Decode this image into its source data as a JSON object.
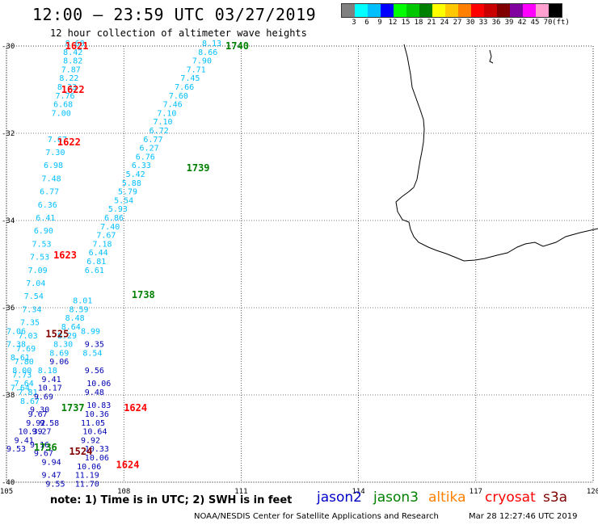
{
  "header": {
    "title": "12:00 – 23:59 UTC 03/27/2019",
    "subtitle": "12 hour collection of altimeter wave heights"
  },
  "colorbar": {
    "colors": [
      "#808080",
      "#00ffff",
      "#00bfff",
      "#0000ff",
      "#00ff00",
      "#00c800",
      "#008000",
      "#ffff00",
      "#ffc800",
      "#ff8000",
      "#ff0000",
      "#c80000",
      "#800000",
      "#8000a0",
      "#ff00ff",
      "#ffa0d0",
      "#000000"
    ],
    "labels": [
      "3",
      "6",
      "9",
      "12",
      "15",
      "18",
      "21",
      "24",
      "27",
      "30",
      "33",
      "36",
      "39",
      "42",
      "45",
      "70",
      "(ft)"
    ]
  },
  "axes": {
    "x_ticks": [
      "105",
      "108",
      "111",
      "114",
      "117",
      "120"
    ],
    "y_ticks": [
      "-30",
      "-32",
      "-34",
      "-36",
      "-38",
      "-40"
    ]
  },
  "satellite_colors": {
    "jason2": "#0000c8",
    "jason3": "#008000",
    "altika": "#ff8000",
    "cryosat": "#ff0000",
    "s3a": "#800000",
    "swh_light": "#00bfff"
  },
  "tracks": [
    {
      "id": "1621",
      "sat": "cryosat",
      "lon": 106.5,
      "lat": -30.0
    },
    {
      "id": "1622",
      "sat": "cryosat",
      "lon": 106.4,
      "lat": -31.0
    },
    {
      "id": "1622",
      "sat": "cryosat",
      "lon": 106.3,
      "lat": -32.2
    },
    {
      "id": "1623",
      "sat": "cryosat",
      "lon": 106.2,
      "lat": -34.8
    },
    {
      "id": "1624",
      "sat": "cryosat",
      "lon": 108.0,
      "lat": -38.3
    },
    {
      "id": "1624",
      "sat": "cryosat",
      "lon": 107.8,
      "lat": -39.6
    },
    {
      "id": "1740",
      "sat": "jason3",
      "lon": 110.6,
      "lat": -30.0
    },
    {
      "id": "1739",
      "sat": "jason3",
      "lon": 109.6,
      "lat": -32.8
    },
    {
      "id": "1738",
      "sat": "jason3",
      "lon": 108.2,
      "lat": -35.7
    },
    {
      "id": "1737",
      "sat": "jason3",
      "lon": 106.4,
      "lat": -38.3
    },
    {
      "id": "1736",
      "sat": "jason3",
      "lon": 105.7,
      "lat": -39.2
    },
    {
      "id": "1525",
      "sat": "s3a",
      "lon": 106.0,
      "lat": -36.6
    },
    {
      "id": "1524",
      "sat": "s3a",
      "lon": 106.6,
      "lat": -39.3
    }
  ],
  "wave_values": {
    "light": [
      [
        "8.68",
        106.5,
        -30.0
      ],
      [
        "8.42",
        106.45,
        -30.2
      ],
      [
        "8.82",
        106.45,
        -30.4
      ],
      [
        "7.87",
        106.4,
        -30.6
      ],
      [
        "8.22",
        106.35,
        -30.8
      ],
      [
        "8.33",
        106.3,
        -31.0
      ],
      [
        "7.76",
        106.25,
        -31.2
      ],
      [
        "6.68",
        106.2,
        -31.4
      ],
      [
        "7.00",
        106.15,
        -31.6
      ],
      [
        "8.13",
        110.0,
        -30.0
      ],
      [
        "8.66",
        109.9,
        -30.2
      ],
      [
        "7.90",
        109.75,
        -30.4
      ],
      [
        "7.71",
        109.6,
        -30.6
      ],
      [
        "7.45",
        109.45,
        -30.8
      ],
      [
        "7.66",
        109.3,
        -31.0
      ],
      [
        "7.60",
        109.15,
        -31.2
      ],
      [
        "7.46",
        109.0,
        -31.4
      ],
      [
        "7.10",
        108.85,
        -31.6
      ],
      [
        "7.10",
        108.75,
        -31.8
      ],
      [
        "6.72",
        108.65,
        -32.0
      ],
      [
        "6.77",
        108.5,
        -32.2
      ],
      [
        "6.27",
        108.4,
        -32.4
      ],
      [
        "6.76",
        108.3,
        -32.6
      ],
      [
        "6.33",
        108.2,
        -32.8
      ],
      [
        "5.42",
        108.05,
        -33.0
      ],
      [
        "5.88",
        107.95,
        -33.2
      ],
      [
        "5.79",
        107.85,
        -33.4
      ],
      [
        "5.54",
        107.75,
        -33.6
      ],
      [
        "5.93",
        107.6,
        -33.8
      ],
      [
        "6.86",
        107.5,
        -34.0
      ],
      [
        "7.40",
        107.4,
        -34.2
      ],
      [
        "7.67",
        107.3,
        -34.4
      ],
      [
        "7.18",
        107.2,
        -34.6
      ],
      [
        "6.44",
        107.1,
        -34.8
      ],
      [
        "6.81",
        107.05,
        -35.0
      ],
      [
        "6.61",
        107.0,
        -35.2
      ],
      [
        "7.67",
        106.05,
        -32.2
      ],
      [
        "7.30",
        106.0,
        -32.5
      ],
      [
        "6.98",
        105.95,
        -32.8
      ],
      [
        "7.48",
        105.9,
        -33.1
      ],
      [
        "6.77",
        105.85,
        -33.4
      ],
      [
        "6.36",
        105.8,
        -33.7
      ],
      [
        "6.41",
        105.75,
        -34.0
      ],
      [
        "6.90",
        105.7,
        -34.3
      ],
      [
        "7.53",
        105.65,
        -34.6
      ],
      [
        "7.53",
        105.6,
        -34.9
      ],
      [
        "7.09",
        105.55,
        -35.2
      ],
      [
        "7.04",
        105.5,
        -35.5
      ],
      [
        "7.54",
        105.45,
        -35.8
      ],
      [
        "7.34",
        105.4,
        -36.1
      ],
      [
        "7.35",
        105.35,
        -36.4
      ],
      [
        "7.03",
        105.3,
        -36.7
      ],
      [
        "7.69",
        105.25,
        -37.0
      ],
      [
        "7.80",
        105.2,
        -37.3
      ],
      [
        "7.73",
        105.15,
        -37.6
      ],
      [
        "7.64",
        105.1,
        -37.9
      ],
      [
        "8.01",
        106.7,
        -35.9
      ],
      [
        "8.59",
        106.6,
        -36.1
      ],
      [
        "8.48",
        106.5,
        -36.3
      ],
      [
        "8.64",
        106.4,
        -36.5
      ],
      [
        "8.29",
        106.3,
        -36.7
      ],
      [
        "8.99",
        106.9,
        -36.6
      ],
      [
        "8.30",
        106.2,
        -36.9
      ],
      [
        "8.69",
        106.1,
        -37.1
      ],
      [
        "8.54",
        106.95,
        -37.1
      ],
      [
        "8.18",
        105.8,
        -37.5
      ],
      [
        "7.06",
        105.0,
        -36.6
      ],
      [
        "7.38",
        105.0,
        -36.9
      ],
      [
        "8.61",
        105.1,
        -37.2
      ],
      [
        "8.00",
        105.15,
        -37.5
      ],
      [
        "7.64",
        105.2,
        -37.8
      ],
      [
        "7.81",
        105.3,
        -38.0
      ],
      [
        "8.67",
        105.35,
        -38.2
      ]
    ],
    "dark": [
      [
        "9.35",
        107.0,
        -36.9
      ],
      [
        "9.06",
        106.1,
        -37.3
      ],
      [
        "9.56",
        107.0,
        -37.5
      ],
      [
        "9.41",
        105.9,
        -37.7
      ],
      [
        "10.06",
        107.05,
        -37.8
      ],
      [
        "10.17",
        105.8,
        -37.9
      ],
      [
        "9.48",
        107.0,
        -38.0
      ],
      [
        "9.69",
        105.7,
        -38.1
      ],
      [
        "10.83",
        107.05,
        -38.3
      ],
      [
        "9.30",
        105.6,
        -38.4
      ],
      [
        "9.67",
        105.55,
        -38.5
      ],
      [
        "10.36",
        107.0,
        -38.5
      ],
      [
        "9.92",
        105.5,
        -38.7
      ],
      [
        "11.05",
        106.9,
        -38.7
      ],
      [
        "9.58",
        105.85,
        -38.7
      ],
      [
        "10.64",
        106.95,
        -38.9
      ],
      [
        "10.39",
        105.3,
        -38.9
      ],
      [
        "9.27",
        105.65,
        -38.9
      ],
      [
        "9.92",
        106.9,
        -39.1
      ],
      [
        "9.41",
        105.2,
        -39.1
      ],
      [
        "9.16",
        105.6,
        -39.2
      ],
      [
        "10.33",
        107.0,
        -39.3
      ],
      [
        "9.53",
        105.0,
        -39.3
      ],
      [
        "9.67",
        105.7,
        -39.4
      ],
      [
        "10.06",
        107.0,
        -39.5
      ],
      [
        "9.94",
        105.9,
        -39.6
      ],
      [
        "10.06",
        106.8,
        -39.7
      ],
      [
        "9.47",
        105.9,
        -39.9
      ],
      [
        "11.19",
        106.75,
        -39.9
      ],
      [
        "9.55",
        106.0,
        -40.1
      ],
      [
        "11.70",
        106.75,
        -40.1
      ]
    ]
  },
  "note": "note: 1) Time is in UTC; 2) SWH is in feet",
  "legend": {
    "jason2": "jason2",
    "jason3": "jason3",
    "altika": "altika",
    "cryosat": "cryosat",
    "s3a": "s3a"
  },
  "footer": {
    "credit": "NOAA/NESDIS Center for Satellite Applications and Research",
    "date": "Mar 28 12:27:46 UTC 2019"
  }
}
